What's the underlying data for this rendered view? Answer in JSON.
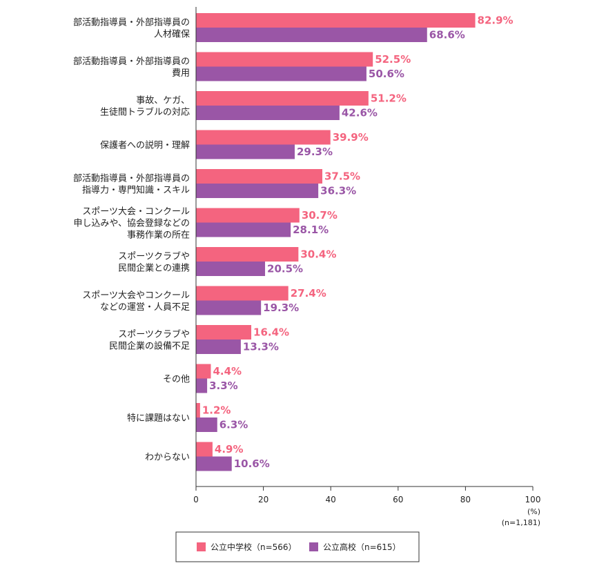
{
  "chart_data": {
    "type": "bar",
    "orientation": "horizontal",
    "categories": [
      [
        "部活動指導員・外部指導員の",
        "人材確保"
      ],
      [
        "部活動指導員・外部指導員の",
        "費用"
      ],
      [
        "事故、ケガ、",
        "生徒間トラブルの対応"
      ],
      [
        "保護者への説明・理解"
      ],
      [
        "部活動指導員・外部指導員の",
        "指導力・専門知識・スキル"
      ],
      [
        "スポーツ大会・コンクール",
        "申し込みや、協会登録などの",
        "事務作業の所在"
      ],
      [
        "スポーツクラブや",
        "民間企業との連携"
      ],
      [
        "スポーツ大会やコンクール",
        "などの運営・人員不足"
      ],
      [
        "スポーツクラブや",
        "民間企業の設備不足"
      ],
      [
        "その他"
      ],
      [
        "特に課題はない"
      ],
      [
        "わからない"
      ]
    ],
    "series": [
      {
        "name": "公立中学校（n=566）",
        "color": "#f4647f",
        "values": [
          82.9,
          52.5,
          51.2,
          39.9,
          37.5,
          30.7,
          30.4,
          27.4,
          16.4,
          4.4,
          1.2,
          4.9
        ]
      },
      {
        "name": "公立高校（n=615）",
        "color": "#9a56a6",
        "values": [
          68.6,
          50.6,
          42.6,
          29.3,
          36.3,
          28.1,
          20.5,
          19.3,
          13.3,
          3.3,
          6.3,
          10.6
        ]
      }
    ],
    "value_suffix": "%",
    "xlim": [
      0,
      100
    ],
    "xticks": [
      "0",
      "20",
      "40",
      "60",
      "80",
      "100"
    ],
    "unit_label": "(%)",
    "sample_note": "(n=1,181)",
    "grid": false,
    "legend_position": "bottom"
  }
}
